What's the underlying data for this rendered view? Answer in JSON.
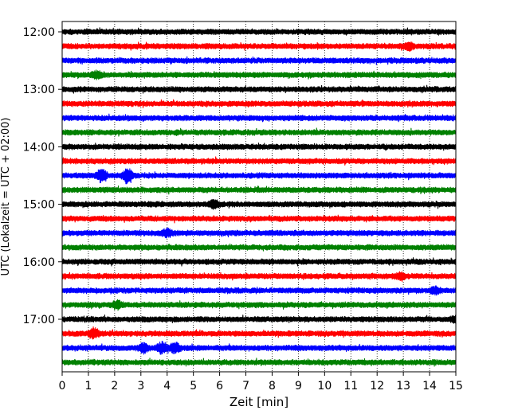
{
  "chart_data": {
    "type": "line",
    "title": "",
    "xlabel": "Zeit  [min]",
    "ylabel": "UTC (Lokalzeit = UTC + 02:00)",
    "xlim": [
      0,
      15
    ],
    "x_ticks": [
      0,
      1,
      2,
      3,
      4,
      5,
      6,
      7,
      8,
      9,
      10,
      11,
      12,
      13,
      14,
      15
    ],
    "y_tick_labels": [
      "12:00",
      "13:00",
      "14:00",
      "15:00",
      "16:00",
      "17:00"
    ],
    "grid": "vertical dotted lines at each minute",
    "line_colors": [
      "#000000",
      "#ff0000",
      "#0000ff",
      "#008000"
    ],
    "series": [
      {
        "values": {
          "start_utc": "12:00",
          "duration_min": 15,
          "color": "#000000",
          "events": []
        }
      },
      {
        "values": {
          "start_utc": "12:15",
          "duration_min": 15,
          "color": "#ff0000",
          "events": [
            {
              "minute": 13.2,
              "strength": 1.4
            }
          ]
        }
      },
      {
        "values": {
          "start_utc": "12:30",
          "duration_min": 15,
          "color": "#0000ff",
          "events": []
        }
      },
      {
        "values": {
          "start_utc": "12:45",
          "duration_min": 15,
          "color": "#008000",
          "events": [
            {
              "minute": 1.3,
              "strength": 1.3
            }
          ]
        }
      },
      {
        "values": {
          "start_utc": "13:00",
          "duration_min": 15,
          "color": "#000000",
          "events": []
        }
      },
      {
        "values": {
          "start_utc": "13:15",
          "duration_min": 15,
          "color": "#ff0000",
          "events": []
        }
      },
      {
        "values": {
          "start_utc": "13:30",
          "duration_min": 15,
          "color": "#0000ff",
          "events": []
        }
      },
      {
        "values": {
          "start_utc": "13:45",
          "duration_min": 15,
          "color": "#008000",
          "events": []
        }
      },
      {
        "values": {
          "start_utc": "14:00",
          "duration_min": 15,
          "color": "#000000",
          "events": []
        }
      },
      {
        "values": {
          "start_utc": "14:15",
          "duration_min": 15,
          "color": "#ff0000",
          "events": []
        }
      },
      {
        "values": {
          "start_utc": "14:30",
          "duration_min": 15,
          "color": "#0000ff",
          "events": [
            {
              "minute": 1.5,
              "strength": 2.4
            },
            {
              "minute": 2.5,
              "strength": 2.8
            }
          ]
        }
      },
      {
        "values": {
          "start_utc": "14:45",
          "duration_min": 15,
          "color": "#008000",
          "events": []
        }
      },
      {
        "values": {
          "start_utc": "15:00",
          "duration_min": 15,
          "color": "#000000",
          "events": [
            {
              "minute": 5.8,
              "strength": 1.5
            }
          ]
        }
      },
      {
        "values": {
          "start_utc": "15:15",
          "duration_min": 15,
          "color": "#ff0000",
          "events": []
        }
      },
      {
        "values": {
          "start_utc": "15:30",
          "duration_min": 15,
          "color": "#0000ff",
          "events": [
            {
              "minute": 4.0,
              "strength": 1.4
            }
          ]
        }
      },
      {
        "values": {
          "start_utc": "15:45",
          "duration_min": 15,
          "color": "#008000",
          "events": []
        }
      },
      {
        "values": {
          "start_utc": "16:00",
          "duration_min": 15,
          "color": "#000000",
          "events": []
        }
      },
      {
        "values": {
          "start_utc": "16:15",
          "duration_min": 15,
          "color": "#ff0000",
          "events": [
            {
              "minute": 12.9,
              "strength": 1.4
            }
          ]
        }
      },
      {
        "values": {
          "start_utc": "16:30",
          "duration_min": 15,
          "color": "#0000ff",
          "events": [
            {
              "minute": 14.2,
              "strength": 1.3
            }
          ]
        }
      },
      {
        "values": {
          "start_utc": "16:45",
          "duration_min": 15,
          "color": "#008000",
          "events": [
            {
              "minute": 2.1,
              "strength": 1.4
            }
          ]
        }
      },
      {
        "values": {
          "start_utc": "17:00",
          "duration_min": 15,
          "color": "#000000",
          "events": [
            {
              "minute": 15.0,
              "strength": 1.3
            }
          ]
        }
      },
      {
        "values": {
          "start_utc": "17:15",
          "duration_min": 15,
          "color": "#ff0000",
          "events": [
            {
              "minute": 1.2,
              "strength": 2.0
            }
          ]
        }
      },
      {
        "values": {
          "start_utc": "17:30",
          "duration_min": 15,
          "color": "#0000ff",
          "events": [
            {
              "minute": 3.1,
              "strength": 1.7
            },
            {
              "minute": 3.8,
              "strength": 2.2
            },
            {
              "minute": 4.3,
              "strength": 2.0
            }
          ]
        }
      },
      {
        "values": {
          "start_utc": "17:45",
          "duration_min": 15,
          "color": "#008000",
          "events": []
        }
      }
    ]
  }
}
